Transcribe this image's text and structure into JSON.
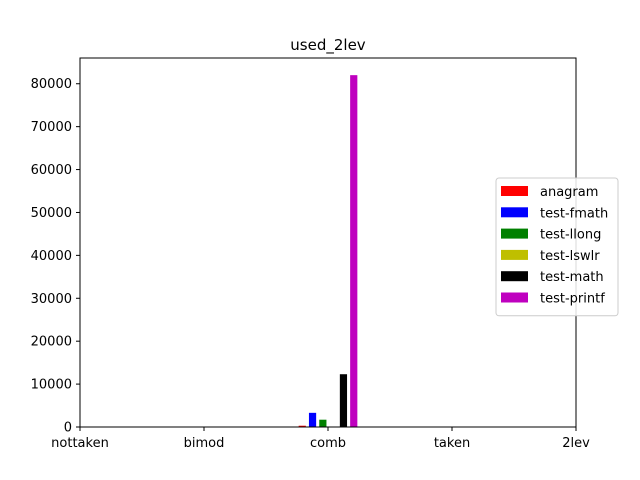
{
  "chart_data": {
    "type": "bar",
    "title": "used_2lev",
    "xlabel": "",
    "ylabel": "",
    "categories": [
      "nottaken",
      "bimod",
      "comb",
      "taken",
      "2lev"
    ],
    "ylim": [
      0,
      86000
    ],
    "yticks": [
      0,
      10000,
      20000,
      30000,
      40000,
      50000,
      60000,
      70000,
      80000
    ],
    "grid": false,
    "legend_position": "right",
    "series": [
      {
        "name": "anagram",
        "color": "#ff0000",
        "values": [
          0,
          0,
          300,
          0,
          0
        ]
      },
      {
        "name": "test-fmath",
        "color": "#0000ff",
        "values": [
          0,
          0,
          3300,
          0,
          0
        ]
      },
      {
        "name": "test-llong",
        "color": "#008000",
        "values": [
          0,
          0,
          1700,
          0,
          0
        ]
      },
      {
        "name": "test-lswlr",
        "color": "#bfbf00",
        "values": [
          0,
          0,
          100,
          0,
          0
        ]
      },
      {
        "name": "test-math",
        "color": "#000000",
        "values": [
          0,
          0,
          12300,
          0,
          0
        ]
      },
      {
        "name": "test-printf",
        "color": "#bf00bf",
        "values": [
          0,
          0,
          82000,
          0,
          0
        ]
      }
    ]
  }
}
